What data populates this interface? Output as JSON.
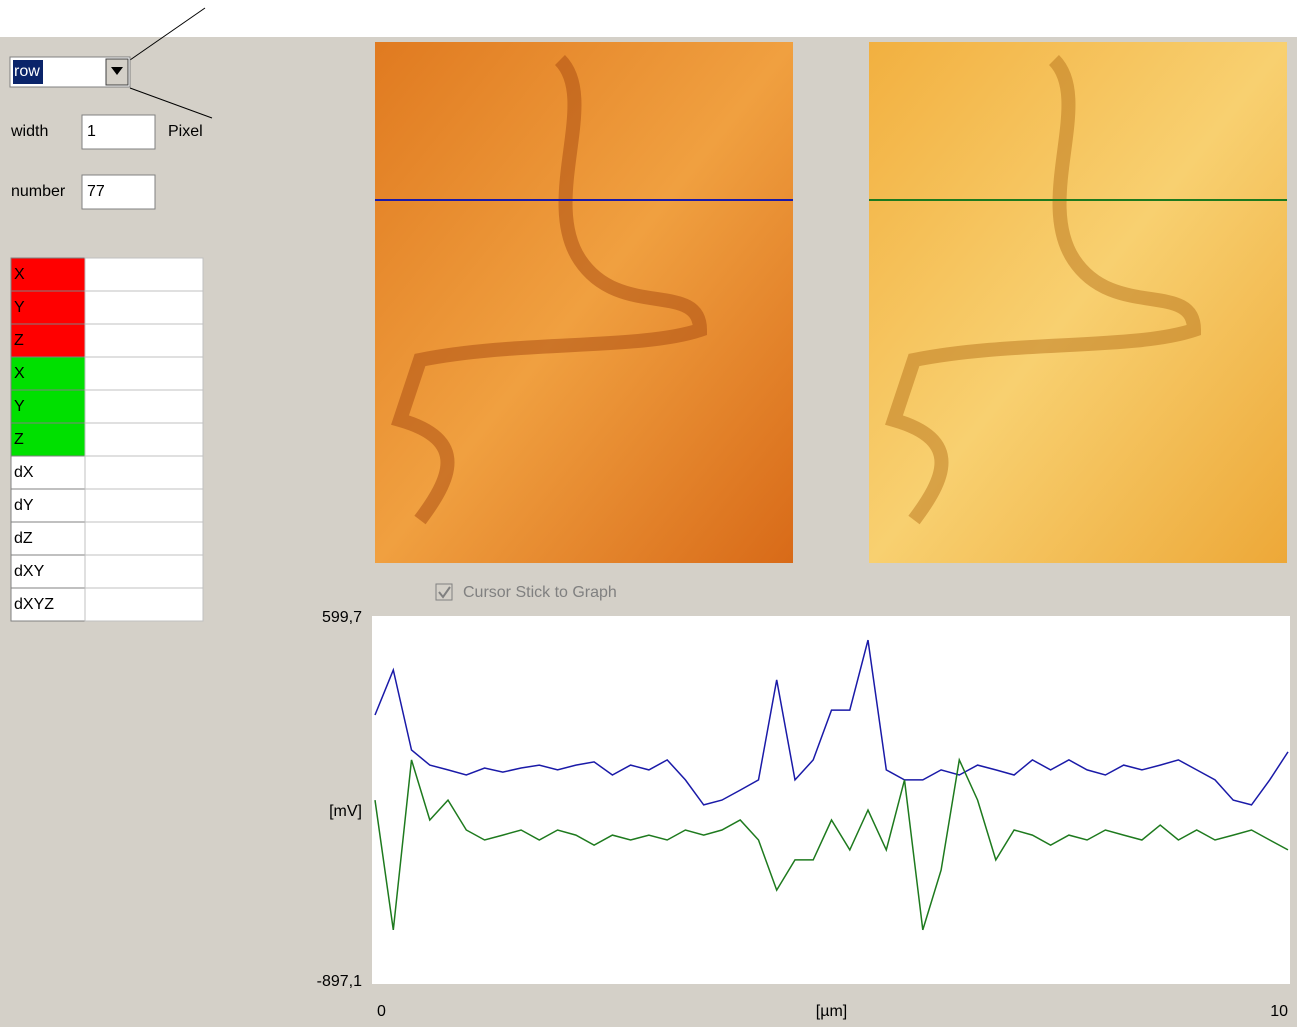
{
  "controls": {
    "mode": "row",
    "width_label": "width",
    "width_value": "1",
    "width_unit": "Pixel",
    "number_label": "number",
    "number_value": "77"
  },
  "table": {
    "rows": [
      "X",
      "Y",
      "Z",
      "X",
      "Y",
      "Z",
      "dX",
      "dY",
      "dZ",
      "dXY",
      "dXYZ"
    ]
  },
  "checkbox": "Cursor Stick to Graph",
  "chart_data": {
    "type": "line",
    "ylabel": "[mV]",
    "xlabel": "[µm]",
    "xlim": [
      0,
      10
    ],
    "xticks": [
      0,
      10
    ],
    "ylim": [
      -897.1,
      599.7
    ],
    "yticks": [
      {
        "value": -897.1,
        "label": "-897,1"
      },
      {
        "value": 599.7,
        "label": "599,7"
      }
    ],
    "grid": false,
    "x": [
      0,
      0.2,
      0.4,
      0.6,
      0.8,
      1,
      1.2,
      1.4,
      1.6,
      1.8,
      2,
      2.2,
      2.4,
      2.6,
      2.8,
      3,
      3.2,
      3.4,
      3.6,
      3.8,
      4,
      4.2,
      4.4,
      4.6,
      4.8,
      5,
      5.2,
      5.4,
      5.6,
      5.8,
      6,
      6.2,
      6.4,
      6.6,
      6.8,
      7,
      7.2,
      7.4,
      7.6,
      7.8,
      8,
      8.2,
      8.4,
      8.6,
      8.8,
      9,
      9.2,
      9.4,
      9.6,
      9.8,
      10
    ],
    "series": [
      {
        "color": "#1a1aa8",
        "values": [
          201,
          386,
          57,
          -5,
          -25,
          -46,
          -17,
          -34,
          -17,
          -5,
          -25,
          -5,
          8,
          -46,
          -5,
          -25,
          16,
          -66,
          -169,
          -149,
          -108,
          -66,
          345,
          -66,
          16,
          221,
          221,
          509,
          -25,
          -66,
          -66,
          -25,
          -46,
          -5,
          -25,
          -46,
          16,
          -25,
          16,
          -25,
          -46,
          -5,
          -25,
          -5,
          16,
          -25,
          -66,
          -149,
          -169,
          -66,
          49
        ]
      },
      {
        "color": "#1e7a1e",
        "values": [
          -149,
          -683,
          16,
          -231,
          -149,
          -272,
          -313,
          -293,
          -272,
          -313,
          -272,
          -293,
          -334,
          -293,
          -313,
          -293,
          -313,
          -272,
          -293,
          -272,
          -231,
          -313,
          -519,
          -395,
          -395,
          -231,
          -354,
          -190,
          -354,
          -66,
          -683,
          -437,
          16,
          -149,
          -395,
          -272,
          -293,
          -334,
          -293,
          -313,
          -272,
          -293,
          -313,
          -252,
          -313,
          -272,
          -313,
          -293,
          -272,
          -313,
          -354
        ]
      }
    ]
  }
}
